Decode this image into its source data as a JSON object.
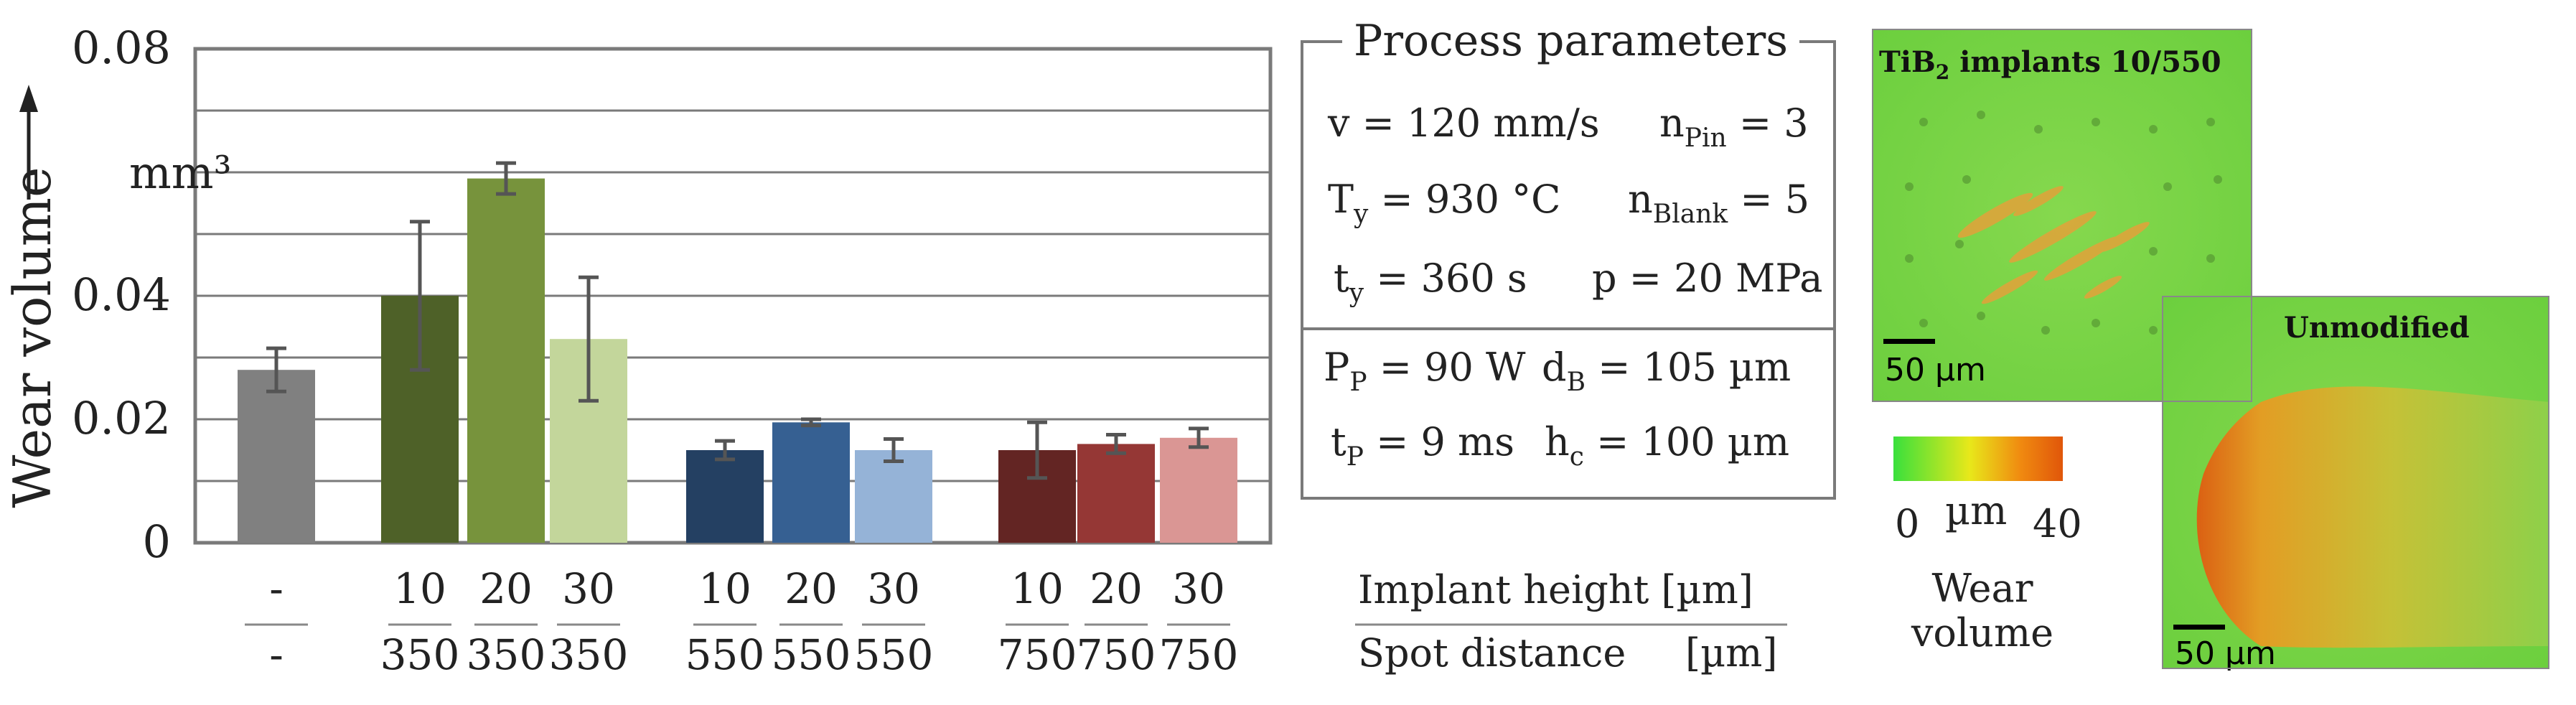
{
  "chart_data": {
    "type": "bar",
    "ylabel": "Wear volume",
    "yunit": "mm³",
    "ylim": [
      0,
      0.08
    ],
    "yticks": [
      "0",
      "0.02",
      "0.04",
      "0.08"
    ],
    "grid": true,
    "categories": [
      {
        "top": "-",
        "bottom": "-",
        "value": 0.028,
        "err": 0.0035,
        "color": "#808080"
      },
      {
        "top": "10",
        "bottom": "350",
        "value": 0.04,
        "err": 0.012,
        "color": "#4e6128"
      },
      {
        "top": "20",
        "bottom": "350",
        "value": 0.059,
        "err": 0.0025,
        "color": "#77933c"
      },
      {
        "top": "30",
        "bottom": "350",
        "value": 0.033,
        "err": 0.01,
        "color": "#c3d69b"
      },
      {
        "top": "10",
        "bottom": "550",
        "value": 0.015,
        "err": 0.0015,
        "color": "#244062"
      },
      {
        "top": "20",
        "bottom": "550",
        "value": 0.0195,
        "err": 0.0005,
        "color": "#366092"
      },
      {
        "top": "30",
        "bottom": "550",
        "value": 0.015,
        "err": 0.0018,
        "color": "#95b3d7"
      },
      {
        "top": "10",
        "bottom": "750",
        "value": 0.015,
        "err": 0.0045,
        "color": "#632523"
      },
      {
        "top": "20",
        "bottom": "750",
        "value": 0.016,
        "err": 0.0015,
        "color": "#953735"
      },
      {
        "top": "30",
        "bottom": "750",
        "value": 0.017,
        "err": 0.0015,
        "color": "#da9694"
      }
    ],
    "category_legend": {
      "top": "Implant height [µm]",
      "bottom_label": "Spot distance",
      "bottom_unit": "[µm]"
    }
  },
  "process_parameters": {
    "title": "Process parameters",
    "v": "v = 120 mm/s",
    "n_pin_main": "n",
    "n_pin_sub": "Pin",
    "n_pin_value": " = 3",
    "ty_T_main": "T",
    "ty_T_sub": "y",
    "ty_T_value": " = 930 °C",
    "n_blank_main": "n",
    "n_blank_sub": "Blank",
    "n_blank_value": " = 5",
    "ty_t_main": "t",
    "ty_t_sub": "y",
    "ty_t_value": " = 360 s",
    "p": "p = 20 MPa",
    "pp_main": "P",
    "pp_sub": "P",
    "pp_value": " = 90 W",
    "db_main": "d",
    "db_sub": "B",
    "db_value": " = 105 µm",
    "tp_main": "t",
    "tp_sub": "P",
    "tp_value": " = 9 ms",
    "hc_main": "h",
    "hc_sub": "c",
    "hc_value": " = 100 µm"
  },
  "micrographs": {
    "top_label_pre": "TiB",
    "top_label_sub": "2",
    "top_label_post": " implants 10/550",
    "top_scale": "50 µm",
    "bottom_label": "Unmodified",
    "bottom_scale": "50 µm"
  },
  "colorbar": {
    "min": "0",
    "unit": "µm",
    "max": "40",
    "label_line1": "Wear",
    "label_line2": "volume",
    "colors": [
      "#39e03c",
      "#f0e81a",
      "#f08a10",
      "#e0560a"
    ]
  }
}
